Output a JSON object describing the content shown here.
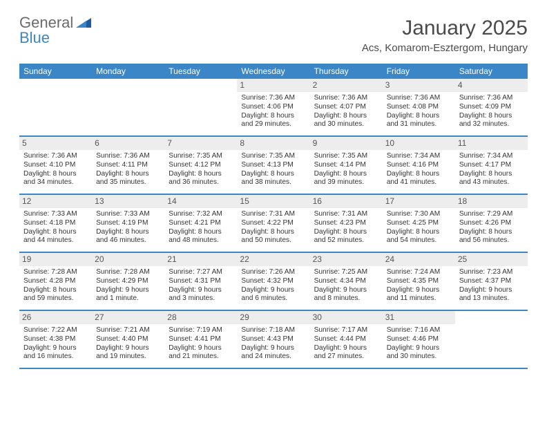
{
  "logo": {
    "word1": "General",
    "word2": "Blue"
  },
  "title": "January 2025",
  "subtitle": "Acs, Komarom-Esztergom, Hungary",
  "colors": {
    "brand_blue": "#3b86c7",
    "header_text": "#ffffff",
    "daynum_bg": "#ededed",
    "text": "#333333",
    "logo_grey": "#6b6b6b",
    "title_grey": "#4a4a4a",
    "background": "#ffffff"
  },
  "typography": {
    "title_fontsize": 30,
    "subtitle_fontsize": 15,
    "dayheader_fontsize": 12,
    "daynum_fontsize": 12,
    "body_fontsize": 10.2
  },
  "day_headers": [
    "Sunday",
    "Monday",
    "Tuesday",
    "Wednesday",
    "Thursday",
    "Friday",
    "Saturday"
  ],
  "weeks": [
    [
      {
        "n": "",
        "empty": true
      },
      {
        "n": "",
        "empty": true
      },
      {
        "n": "",
        "empty": true
      },
      {
        "n": "1",
        "a": "Sunrise: 7:36 AM",
        "b": "Sunset: 4:06 PM",
        "c": "Daylight: 8 hours and 29 minutes."
      },
      {
        "n": "2",
        "a": "Sunrise: 7:36 AM",
        "b": "Sunset: 4:07 PM",
        "c": "Daylight: 8 hours and 30 minutes."
      },
      {
        "n": "3",
        "a": "Sunrise: 7:36 AM",
        "b": "Sunset: 4:08 PM",
        "c": "Daylight: 8 hours and 31 minutes."
      },
      {
        "n": "4",
        "a": "Sunrise: 7:36 AM",
        "b": "Sunset: 4:09 PM",
        "c": "Daylight: 8 hours and 32 minutes."
      }
    ],
    [
      {
        "n": "5",
        "a": "Sunrise: 7:36 AM",
        "b": "Sunset: 4:10 PM",
        "c": "Daylight: 8 hours and 34 minutes."
      },
      {
        "n": "6",
        "a": "Sunrise: 7:36 AM",
        "b": "Sunset: 4:11 PM",
        "c": "Daylight: 8 hours and 35 minutes."
      },
      {
        "n": "7",
        "a": "Sunrise: 7:35 AM",
        "b": "Sunset: 4:12 PM",
        "c": "Daylight: 8 hours and 36 minutes."
      },
      {
        "n": "8",
        "a": "Sunrise: 7:35 AM",
        "b": "Sunset: 4:13 PM",
        "c": "Daylight: 8 hours and 38 minutes."
      },
      {
        "n": "9",
        "a": "Sunrise: 7:35 AM",
        "b": "Sunset: 4:14 PM",
        "c": "Daylight: 8 hours and 39 minutes."
      },
      {
        "n": "10",
        "a": "Sunrise: 7:34 AM",
        "b": "Sunset: 4:16 PM",
        "c": "Daylight: 8 hours and 41 minutes."
      },
      {
        "n": "11",
        "a": "Sunrise: 7:34 AM",
        "b": "Sunset: 4:17 PM",
        "c": "Daylight: 8 hours and 43 minutes."
      }
    ],
    [
      {
        "n": "12",
        "a": "Sunrise: 7:33 AM",
        "b": "Sunset: 4:18 PM",
        "c": "Daylight: 8 hours and 44 minutes."
      },
      {
        "n": "13",
        "a": "Sunrise: 7:33 AM",
        "b": "Sunset: 4:19 PM",
        "c": "Daylight: 8 hours and 46 minutes."
      },
      {
        "n": "14",
        "a": "Sunrise: 7:32 AM",
        "b": "Sunset: 4:21 PM",
        "c": "Daylight: 8 hours and 48 minutes."
      },
      {
        "n": "15",
        "a": "Sunrise: 7:31 AM",
        "b": "Sunset: 4:22 PM",
        "c": "Daylight: 8 hours and 50 minutes."
      },
      {
        "n": "16",
        "a": "Sunrise: 7:31 AM",
        "b": "Sunset: 4:23 PM",
        "c": "Daylight: 8 hours and 52 minutes."
      },
      {
        "n": "17",
        "a": "Sunrise: 7:30 AM",
        "b": "Sunset: 4:25 PM",
        "c": "Daylight: 8 hours and 54 minutes."
      },
      {
        "n": "18",
        "a": "Sunrise: 7:29 AM",
        "b": "Sunset: 4:26 PM",
        "c": "Daylight: 8 hours and 56 minutes."
      }
    ],
    [
      {
        "n": "19",
        "a": "Sunrise: 7:28 AM",
        "b": "Sunset: 4:28 PM",
        "c": "Daylight: 8 hours and 59 minutes."
      },
      {
        "n": "20",
        "a": "Sunrise: 7:28 AM",
        "b": "Sunset: 4:29 PM",
        "c": "Daylight: 9 hours and 1 minute."
      },
      {
        "n": "21",
        "a": "Sunrise: 7:27 AM",
        "b": "Sunset: 4:31 PM",
        "c": "Daylight: 9 hours and 3 minutes."
      },
      {
        "n": "22",
        "a": "Sunrise: 7:26 AM",
        "b": "Sunset: 4:32 PM",
        "c": "Daylight: 9 hours and 6 minutes."
      },
      {
        "n": "23",
        "a": "Sunrise: 7:25 AM",
        "b": "Sunset: 4:34 PM",
        "c": "Daylight: 9 hours and 8 minutes."
      },
      {
        "n": "24",
        "a": "Sunrise: 7:24 AM",
        "b": "Sunset: 4:35 PM",
        "c": "Daylight: 9 hours and 11 minutes."
      },
      {
        "n": "25",
        "a": "Sunrise: 7:23 AM",
        "b": "Sunset: 4:37 PM",
        "c": "Daylight: 9 hours and 13 minutes."
      }
    ],
    [
      {
        "n": "26",
        "a": "Sunrise: 7:22 AM",
        "b": "Sunset: 4:38 PM",
        "c": "Daylight: 9 hours and 16 minutes."
      },
      {
        "n": "27",
        "a": "Sunrise: 7:21 AM",
        "b": "Sunset: 4:40 PM",
        "c": "Daylight: 9 hours and 19 minutes."
      },
      {
        "n": "28",
        "a": "Sunrise: 7:19 AM",
        "b": "Sunset: 4:41 PM",
        "c": "Daylight: 9 hours and 21 minutes."
      },
      {
        "n": "29",
        "a": "Sunrise: 7:18 AM",
        "b": "Sunset: 4:43 PM",
        "c": "Daylight: 9 hours and 24 minutes."
      },
      {
        "n": "30",
        "a": "Sunrise: 7:17 AM",
        "b": "Sunset: 4:44 PM",
        "c": "Daylight: 9 hours and 27 minutes."
      },
      {
        "n": "31",
        "a": "Sunrise: 7:16 AM",
        "b": "Sunset: 4:46 PM",
        "c": "Daylight: 9 hours and 30 minutes."
      },
      {
        "n": "",
        "empty": true
      }
    ]
  ]
}
